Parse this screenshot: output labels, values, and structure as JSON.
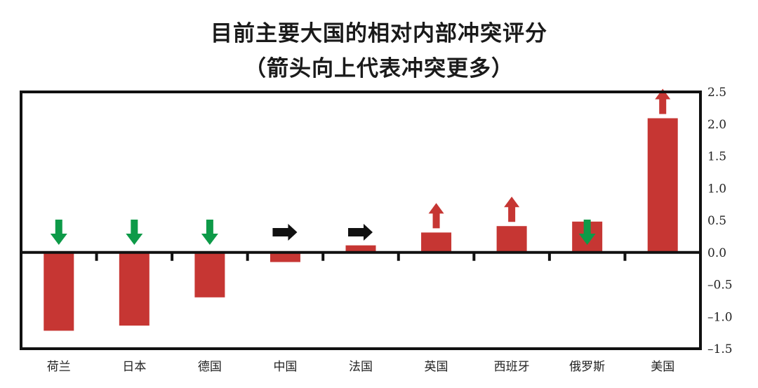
{
  "chart_data": {
    "type": "bar",
    "title": "目前主要大国的相对内部冲突评分",
    "subtitle": "（箭头向上代表冲突更多）",
    "xlabel": "",
    "ylabel": "",
    "ylim": [
      -1.5,
      2.5
    ],
    "y_ticks": [
      "2.5",
      "2.0",
      "1.5",
      "1.0",
      "0.5",
      "0.0",
      "–0.5",
      "–1.0",
      "–1.5"
    ],
    "y_tick_values": [
      2.5,
      2.0,
      1.5,
      1.0,
      0.5,
      0.0,
      -0.5,
      -1.0,
      -1.5
    ],
    "y_axis_position": "right",
    "grid": false,
    "legend": null,
    "categories": [
      "荷兰",
      "日本",
      "德国",
      "中国",
      "法国",
      "英国",
      "西班牙",
      "俄罗斯",
      "美国"
    ],
    "values": [
      -1.22,
      -1.14,
      -0.7,
      -0.15,
      0.11,
      0.31,
      0.41,
      0.48,
      2.09
    ],
    "trend_arrows": [
      "down",
      "down",
      "down",
      "right",
      "right",
      "up",
      "up",
      "down",
      "up"
    ],
    "colors": {
      "bar": "#c63633",
      "arrow_up": "#c63633",
      "arrow_down": "#0d9a48",
      "arrow_right": "#111111",
      "axis": "#111111"
    }
  }
}
